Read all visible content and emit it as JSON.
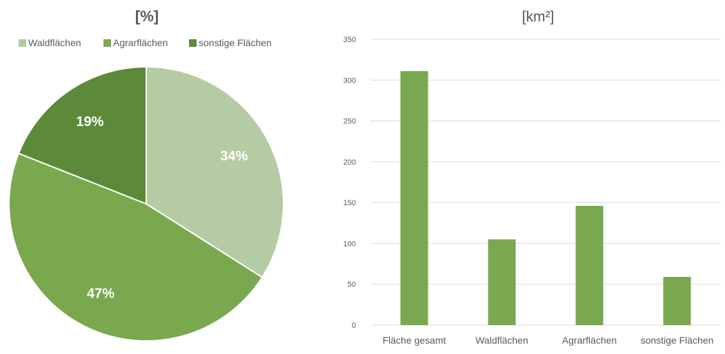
{
  "chart_data": [
    {
      "type": "pie",
      "title": "[%]",
      "legend_placement": "top",
      "slices": [
        {
          "name": "Waldflächen",
          "value": 34,
          "label": "34%",
          "color": "#b5cba3"
        },
        {
          "name": "Agrarflächen",
          "value": 47,
          "label": "47%",
          "color": "#79a84e"
        },
        {
          "name": "sonstige Flächen",
          "value": 19,
          "label": "19%",
          "color": "#5d8a39"
        }
      ]
    },
    {
      "type": "bar",
      "title": "[km²]",
      "categories": [
        "Fläche gesamt",
        "Waldflächen",
        "Agrarflächen",
        "sonstige Flächen"
      ],
      "values": [
        311,
        105,
        146,
        59
      ],
      "ylim": [
        0,
        350
      ],
      "yticks": [
        0,
        50,
        100,
        150,
        200,
        250,
        300,
        350
      ],
      "grid": true,
      "bar_color": "#79a84e",
      "grid_color": "#d9d9d9"
    }
  ]
}
